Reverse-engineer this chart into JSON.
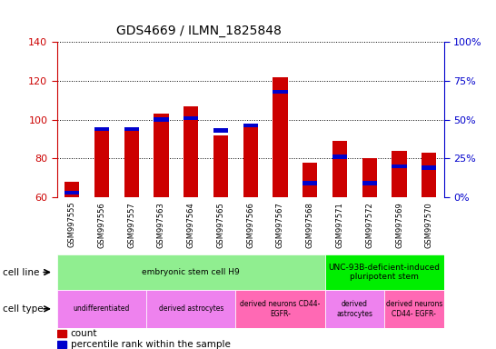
{
  "title": "GDS4669 / ILMN_1825848",
  "samples": [
    "GSM997555",
    "GSM997556",
    "GSM997557",
    "GSM997563",
    "GSM997564",
    "GSM997565",
    "GSM997566",
    "GSM997567",
    "GSM997568",
    "GSM997571",
    "GSM997572",
    "GSM997569",
    "GSM997570"
  ],
  "count_values": [
    68,
    94,
    94,
    103,
    107,
    92,
    96,
    122,
    78,
    89,
    80,
    84,
    83
  ],
  "percentile_values": [
    3,
    44,
    44,
    50,
    51,
    43,
    46,
    68,
    9,
    26,
    9,
    20,
    19
  ],
  "ylim_left": [
    60,
    140
  ],
  "ylim_right": [
    0,
    100
  ],
  "yticks_left": [
    60,
    80,
    100,
    120,
    140
  ],
  "yticks_right": [
    0,
    25,
    50,
    75,
    100
  ],
  "cell_line_groups": [
    {
      "label": "embryonic stem cell H9",
      "start": 0,
      "end": 8,
      "color": "#90EE90"
    },
    {
      "label": "UNC-93B-deficient-induced\npluripotent stem",
      "start": 9,
      "end": 12,
      "color": "#00EE00"
    }
  ],
  "cell_type_groups": [
    {
      "label": "undifferentiated",
      "start": 0,
      "end": 2,
      "color": "#EE82EE"
    },
    {
      "label": "derived astrocytes",
      "start": 3,
      "end": 5,
      "color": "#EE82EE"
    },
    {
      "label": "derived neurons CD44-\nEGFR-",
      "start": 6,
      "end": 8,
      "color": "#FF69B4"
    },
    {
      "label": "derived\nastrocytes",
      "start": 9,
      "end": 10,
      "color": "#EE82EE"
    },
    {
      "label": "derived neurons\nCD44- EGFR-",
      "start": 11,
      "end": 12,
      "color": "#FF69B4"
    }
  ],
  "bar_color_red": "#CC0000",
  "bar_color_blue": "#0000CC",
  "bar_width": 0.5,
  "background_color": "#FFFFFF",
  "tick_label_color_left": "#CC0000",
  "tick_label_color_right": "#0000CC",
  "grid_color": "#000000",
  "xtick_bg_color": "#C8C8C8"
}
